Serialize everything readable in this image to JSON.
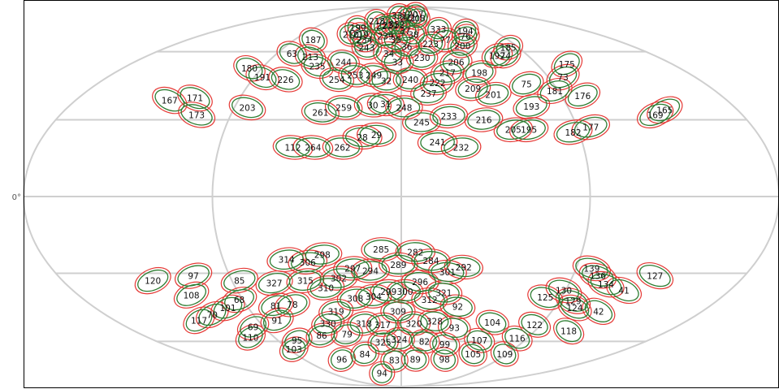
{
  "chart_data": {
    "type": "scatter",
    "projection": "mollweide",
    "title": "",
    "xlabel": "",
    "ylabel": "",
    "ytick_labels": [
      "0°"
    ],
    "grid": true,
    "legend": "none",
    "x_unit": "longitude (degrees)",
    "y_unit": "latitude (degrees)",
    "colors": {
      "grid": "#cfcfcf",
      "inner_ellipse": "#2e7d32",
      "outer_ellipse": "#e53935",
      "label": "#111111",
      "frame": "#000000"
    },
    "fields": [
      {
        "id": "331",
        "lon": -2.8,
        "lat": 81
      },
      {
        "id": "207",
        "lon": 24,
        "lat": 82
      },
      {
        "id": "221",
        "lon": 9.5,
        "lat": 79.5
      },
      {
        "id": "208",
        "lon": 22,
        "lat": 79
      },
      {
        "id": "218",
        "lon": -30,
        "lat": 77
      },
      {
        "id": "227",
        "lon": -18.5,
        "lat": 74
      },
      {
        "id": "231",
        "lon": -12,
        "lat": 74.5
      },
      {
        "id": "332",
        "lon": -5,
        "lat": 75
      },
      {
        "id": "199",
        "lon": -45,
        "lat": 73
      },
      {
        "id": "210",
        "lon": -46,
        "lat": 69
      },
      {
        "id": "219",
        "lon": -37,
        "lat": 69
      },
      {
        "id": "234",
        "lon": -31,
        "lat": 66
      },
      {
        "id": "239",
        "lon": -14,
        "lat": 68
      },
      {
        "id": "35",
        "lon": -4.5,
        "lat": 66
      },
      {
        "id": "37",
        "lon": 3.8,
        "lat": 71
      },
      {
        "id": "38",
        "lon": 11,
        "lat": 69
      },
      {
        "id": "36",
        "lon": 4.3,
        "lat": 62.5
      },
      {
        "id": "333",
        "lon": 37,
        "lat": 72
      },
      {
        "id": "194",
        "lon": 62,
        "lat": 71
      },
      {
        "id": "76",
        "lon": 57,
        "lat": 68
      },
      {
        "id": "77",
        "lon": 37,
        "lat": 66
      },
      {
        "id": "223",
        "lon": 23.5,
        "lat": 64
      },
      {
        "id": "200",
        "lon": 48,
        "lat": 63
      },
      {
        "id": "187",
        "lon": -74,
        "lat": 66
      },
      {
        "id": "243",
        "lon": -26.5,
        "lat": 62
      },
      {
        "id": "34",
        "lon": -9,
        "lat": 59
      },
      {
        "id": "33",
        "lon": -2.5,
        "lat": 55
      },
      {
        "id": "230",
        "lon": 14.5,
        "lat": 57
      },
      {
        "id": "206",
        "lon": 37,
        "lat": 55
      },
      {
        "id": "185",
        "lon": 82,
        "lat": 62
      },
      {
        "id": "192",
        "lon": 68,
        "lat": 58
      },
      {
        "id": "74",
        "lon": 74,
        "lat": 58
      },
      {
        "id": "175",
        "lon": 110,
        "lat": 54
      },
      {
        "id": "63",
        "lon": -79,
        "lat": 59
      },
      {
        "id": "213",
        "lon": -64,
        "lat": 57.5
      },
      {
        "id": "244",
        "lon": -39,
        "lat": 55
      },
      {
        "id": "235",
        "lon": -55,
        "lat": 53
      },
      {
        "id": "180",
        "lon": -98,
        "lat": 52
      },
      {
        "id": "191",
        "lon": -85,
        "lat": 48
      },
      {
        "id": "226",
        "lon": -70,
        "lat": 47
      },
      {
        "id": "254",
        "lon": -39,
        "lat": 47
      },
      {
        "id": "253",
        "lon": -28.5,
        "lat": 49
      },
      {
        "id": "249",
        "lon": -17,
        "lat": 49
      },
      {
        "id": "32",
        "lon": -9,
        "lat": 46.5
      },
      {
        "id": "240",
        "lon": 5.5,
        "lat": 47
      },
      {
        "id": "222",
        "lon": 21.5,
        "lat": 45.5
      },
      {
        "id": "217",
        "lon": 29,
        "lat": 50
      },
      {
        "id": "198",
        "lon": 49,
        "lat": 50
      },
      {
        "id": "73",
        "lon": 99,
        "lat": 48
      },
      {
        "id": "75",
        "lon": 74,
        "lat": 45
      },
      {
        "id": "181",
        "lon": 88,
        "lat": 42
      },
      {
        "id": "176",
        "lon": 102,
        "lat": 40
      },
      {
        "id": "167",
        "lon": -128,
        "lat": 38
      },
      {
        "id": "171",
        "lon": -115,
        "lat": 39
      },
      {
        "id": "203",
        "lon": -83,
        "lat": 35
      },
      {
        "id": "173",
        "lon": -108,
        "lat": 32
      },
      {
        "id": "237",
        "lon": 15.5,
        "lat": 41
      },
      {
        "id": "209",
        "lon": 41.5,
        "lat": 43
      },
      {
        "id": "201",
        "lon": 52,
        "lat": 40.5
      },
      {
        "id": "193",
        "lon": 70.5,
        "lat": 35.5
      },
      {
        "id": "165",
        "lon": 141,
        "lat": 34
      },
      {
        "id": "169",
        "lon": 134,
        "lat": 32
      },
      {
        "id": "259",
        "lon": -31,
        "lat": 35
      },
      {
        "id": "30",
        "lon": -15.5,
        "lat": 36
      },
      {
        "id": "31",
        "lon": -8.5,
        "lat": 36.5
      },
      {
        "id": "248",
        "lon": 1.5,
        "lat": 35
      },
      {
        "id": "261",
        "lon": -43,
        "lat": 33
      },
      {
        "id": "233",
        "lon": 25,
        "lat": 31.5
      },
      {
        "id": "245",
        "lon": 10.5,
        "lat": 29
      },
      {
        "id": "216",
        "lon": 43,
        "lat": 30
      },
      {
        "id": "205",
        "lon": 57,
        "lat": 26
      },
      {
        "id": "195",
        "lon": 65,
        "lat": 26
      },
      {
        "id": "182",
        "lon": 87,
        "lat": 25
      },
      {
        "id": "177",
        "lon": 97,
        "lat": 27
      },
      {
        "id": "28",
        "lon": -19.5,
        "lat": 23
      },
      {
        "id": "29",
        "lon": -12.5,
        "lat": 24
      },
      {
        "id": "241",
        "lon": 18,
        "lat": 21
      },
      {
        "id": "232",
        "lon": 29.5,
        "lat": 19
      },
      {
        "id": "112",
        "lon": -53.5,
        "lat": 19
      },
      {
        "id": "264",
        "lon": -43.5,
        "lat": 19
      },
      {
        "id": "262",
        "lon": -29,
        "lat": 19
      },
      {
        "id": "285",
        "lon": -10,
        "lat": -20.5
      },
      {
        "id": "282",
        "lon": 7,
        "lat": -21.5
      },
      {
        "id": "298",
        "lon": -39.5,
        "lat": -22.5
      },
      {
        "id": "314",
        "lon": -58,
        "lat": -24.5
      },
      {
        "id": "306",
        "lon": -47.5,
        "lat": -25.5
      },
      {
        "id": "284",
        "lon": 15,
        "lat": -25
      },
      {
        "id": "289",
        "lon": -1.5,
        "lat": -26.5
      },
      {
        "id": "292",
        "lon": 32,
        "lat": -27.5
      },
      {
        "id": "297",
        "lon": -25,
        "lat": -28
      },
      {
        "id": "294",
        "lon": -16,
        "lat": -29
      },
      {
        "id": "301",
        "lon": 24,
        "lat": -29.5
      },
      {
        "id": "139",
        "lon": 98,
        "lat": -28
      },
      {
        "id": "136",
        "lon": 103,
        "lat": -31
      },
      {
        "id": "127",
        "lon": 133,
        "lat": -31
      },
      {
        "id": "302",
        "lon": -33,
        "lat": -32
      },
      {
        "id": "315",
        "lon": -51,
        "lat": -33
      },
      {
        "id": "296",
        "lon": 10,
        "lat": -33.5
      },
      {
        "id": "134",
        "lon": 110,
        "lat": -34.5
      },
      {
        "id": "120",
        "lon": -132,
        "lat": -33
      },
      {
        "id": "97",
        "lon": -109,
        "lat": -31
      },
      {
        "id": "85",
        "lon": -86,
        "lat": -33
      },
      {
        "id": "327",
        "lon": -68,
        "lat": -34
      },
      {
        "id": "310",
        "lon": -41,
        "lat": -36
      },
      {
        "id": "299",
        "lon": -7,
        "lat": -37.5
      },
      {
        "id": "300",
        "lon": 2,
        "lat": -37.5
      },
      {
        "id": "321",
        "lon": 23.5,
        "lat": -38
      },
      {
        "id": "41",
        "lon": 122,
        "lat": -37
      },
      {
        "id": "130",
        "lon": 89,
        "lat": -37
      },
      {
        "id": "304",
        "lon": -15.5,
        "lat": -39.5
      },
      {
        "id": "308",
        "lon": -26,
        "lat": -40.5
      },
      {
        "id": "312",
        "lon": 16,
        "lat": -41
      },
      {
        "id": "125",
        "lon": 81,
        "lat": -40
      },
      {
        "id": "108",
        "lon": -117,
        "lat": -39
      },
      {
        "id": "68",
        "lon": -92,
        "lat": -41
      },
      {
        "id": "81",
        "lon": -73,
        "lat": -43.5
      },
      {
        "id": "78",
        "lon": -63,
        "lat": -43
      },
      {
        "id": "129",
        "lon": 98,
        "lat": -41.5
      },
      {
        "id": "101",
        "lon": -102,
        "lat": -44.5
      },
      {
        "id": "92",
        "lon": 33,
        "lat": -44
      },
      {
        "id": "124",
        "lon": 102,
        "lat": -44.5
      },
      {
        "id": "309",
        "lon": -2,
        "lat": -46
      },
      {
        "id": "319",
        "lon": -39,
        "lat": -46
      },
      {
        "id": "42",
        "lon": 118,
        "lat": -46
      },
      {
        "id": "70",
        "lon": -115,
        "lat": -47.5
      },
      {
        "id": "91",
        "lon": -78,
        "lat": -50
      },
      {
        "id": "328",
        "lon": 21,
        "lat": -50.5
      },
      {
        "id": "104",
        "lon": 58,
        "lat": -51
      },
      {
        "id": "318",
        "lon": -24,
        "lat": -51.5
      },
      {
        "id": "317",
        "lon": -12,
        "lat": -52
      },
      {
        "id": "330",
        "lon": -47,
        "lat": -51.5
      },
      {
        "id": "320",
        "lon": 8,
        "lat": -51.5
      },
      {
        "id": "122",
        "lon": 86,
        "lat": -52
      },
      {
        "id": "117",
        "lon": -127,
        "lat": -50
      },
      {
        "id": "69",
        "lon": -97,
        "lat": -53
      },
      {
        "id": "93",
        "lon": 35,
        "lat": -53.5
      },
      {
        "id": "118",
        "lon": 113,
        "lat": -55
      },
      {
        "id": "79",
        "lon": -37.5,
        "lat": -56.5
      },
      {
        "id": "86",
        "lon": -55.5,
        "lat": -57
      },
      {
        "id": "324",
        "lon": -1.5,
        "lat": -59
      },
      {
        "id": "82",
        "lon": 17,
        "lat": -60
      },
      {
        "id": "107",
        "lon": 57,
        "lat": -59.5
      },
      {
        "id": "116",
        "lon": 83,
        "lat": -58.5
      },
      {
        "id": "110",
        "lon": -107,
        "lat": -58
      },
      {
        "id": "95",
        "lon": -76,
        "lat": -59.5
      },
      {
        "id": "325",
        "lon": -13.5,
        "lat": -60.5
      },
      {
        "id": "99",
        "lon": 33,
        "lat": -61.5
      },
      {
        "id": "103",
        "lon": -86,
        "lat": -64
      },
      {
        "id": "84",
        "lon": -31,
        "lat": -66.5
      },
      {
        "id": "105",
        "lon": 61,
        "lat": -66.5
      },
      {
        "id": "109",
        "lon": 88,
        "lat": -66.5
      },
      {
        "id": "96",
        "lon": -55,
        "lat": -69.5
      },
      {
        "id": "83",
        "lon": -6.5,
        "lat": -70
      },
      {
        "id": "89",
        "lon": 13,
        "lat": -69.5
      },
      {
        "id": "98",
        "lon": 40,
        "lat": -69.5
      },
      {
        "id": "94",
        "lon": -25,
        "lat": -78
      }
    ]
  }
}
